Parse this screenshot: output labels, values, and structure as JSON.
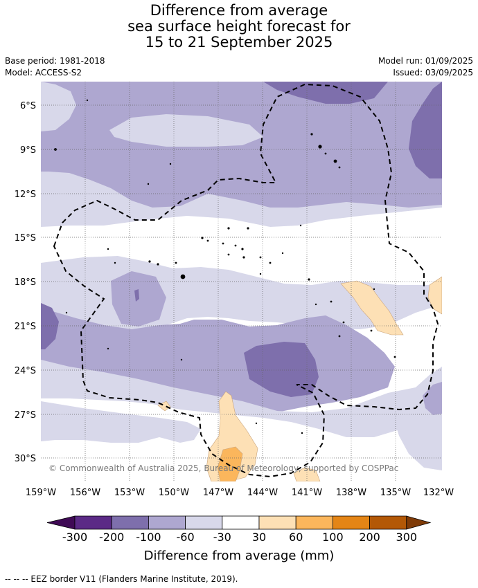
{
  "title": {
    "line1": "Difference from average",
    "line2": "sea surface height forecast for",
    "line3": "15 to 21 September 2025"
  },
  "meta": {
    "base_period": "Base period: 1981-2018",
    "model": "Model: ACCESS-S2",
    "model_run": "Model run: 01/09/2025",
    "issued": "Issued: 03/09/2025"
  },
  "map": {
    "lat_labels": [
      "6°S",
      "9°S",
      "12°S",
      "15°S",
      "18°S",
      "21°S",
      "24°S",
      "27°S",
      "30°S"
    ],
    "lon_labels": [
      "159°W",
      "156°W",
      "153°W",
      "150°W",
      "147°W",
      "144°W",
      "141°W",
      "138°W",
      "135°W",
      "132°W"
    ],
    "copyright": "© Commonwealth of Australia 2025, Bureau of Meteorology, supported by COSPPac"
  },
  "colorbar": {
    "labels": [
      "-300",
      "-200",
      "-100",
      "-60",
      "-30",
      "30",
      "60",
      "100",
      "200",
      "300"
    ],
    "colors": [
      "#3f0a55",
      "#5b2a86",
      "#7e6fac",
      "#aea7d0",
      "#d8d8ea",
      "#ffffff",
      "#fde0b5",
      "#fbb65c",
      "#e48516",
      "#b35806",
      "#7f3b08"
    ],
    "title": "Difference from average (mm)"
  },
  "legend": {
    "eez_text": "-- -- -- EEZ border V11 (Flanders Marine Institute, 2019)."
  }
}
